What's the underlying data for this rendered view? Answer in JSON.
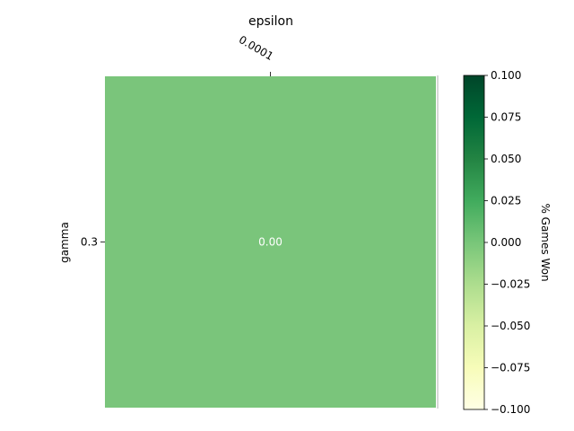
{
  "chart_data": {
    "type": "heatmap",
    "title": "epsilon",
    "xlabel": "",
    "ylabel": "gamma",
    "x_categories": [
      "0.0001"
    ],
    "y_categories": [
      "0.3"
    ],
    "values": [
      [
        0.0
      ]
    ],
    "cell_labels": [
      [
        "0.00"
      ]
    ],
    "cell_color": "#7ac57b",
    "x_axis_position": "top",
    "colorbar": {
      "label": "% Games Won",
      "range": [
        -0.1,
        0.1
      ],
      "ticks": [
        "0.100",
        "0.075",
        "0.050",
        "0.025",
        "0.000",
        "−0.025",
        "−0.050",
        "−0.075",
        "−0.100"
      ],
      "tick_values": [
        0.1,
        0.075,
        0.05,
        0.025,
        0.0,
        -0.025,
        -0.05,
        -0.075,
        -0.1
      ],
      "colormap": "Greens",
      "color_low": "#ffffe5",
      "color_mid": "#78c679",
      "color_high": "#004529"
    },
    "grid": false
  }
}
